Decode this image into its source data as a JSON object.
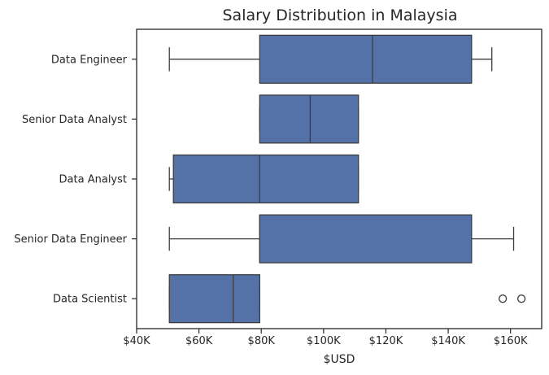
{
  "chart_data": {
    "type": "boxplot",
    "orientation": "horizontal",
    "title": "Salary Distribution in Malaysia",
    "xlabel": "$USD",
    "ylabel": "",
    "xlim": [
      40000,
      170000
    ],
    "xticks": [
      40000,
      60000,
      80000,
      100000,
      120000,
      140000,
      160000
    ],
    "xtick_labels": [
      "$40K",
      "$60K",
      "$80K",
      "$100K",
      "$120K",
      "$140K",
      "$160K"
    ],
    "grid": false,
    "box_color": "#5471a8",
    "line_color": "#3d3d3d",
    "categories": [
      "Data Engineer",
      "Senior Data Analyst",
      "Data Analyst",
      "Senior Data Engineer",
      "Data Scientist"
    ],
    "boxes": [
      {
        "label": "Data Engineer",
        "whisker_low": 50500,
        "q1": 79500,
        "median": 115700,
        "q3": 147500,
        "whisker_high": 154000,
        "outliers": []
      },
      {
        "label": "Senior Data Analyst",
        "whisker_low": 79500,
        "q1": 79500,
        "median": 95700,
        "q3": 111200,
        "whisker_high": 111200,
        "outliers": []
      },
      {
        "label": "Data Analyst",
        "whisker_low": 50500,
        "q1": 51800,
        "median": 79500,
        "q3": 111200,
        "whisker_high": 111200,
        "outliers": []
      },
      {
        "label": "Senior Data Engineer",
        "whisker_low": 50500,
        "q1": 79500,
        "median": 79500,
        "q3": 147500,
        "whisker_high": 161000,
        "outliers": []
      },
      {
        "label": "Data Scientist",
        "whisker_low": 50500,
        "q1": 50500,
        "median": 71000,
        "q3": 79500,
        "whisker_high": 79500,
        "outliers": [
          157500,
          163500
        ]
      }
    ]
  }
}
